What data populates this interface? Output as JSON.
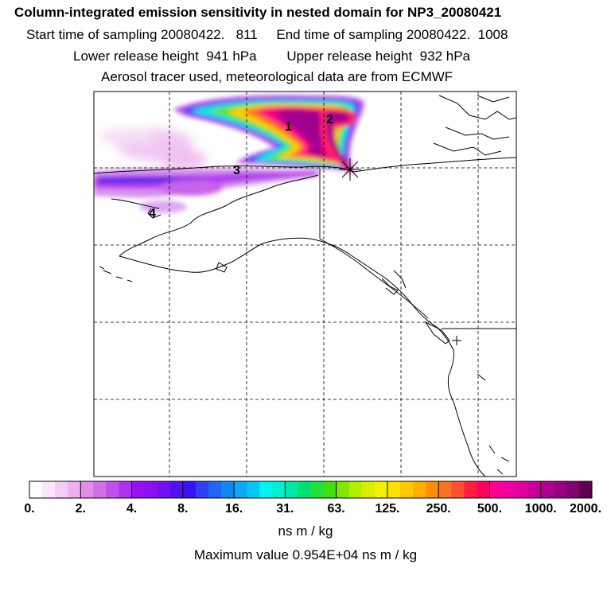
{
  "header": {
    "title": "Column-integrated emission sensitivity in nested domain for NP3_20080421",
    "sampling_line": "Start time of sampling 20080422.   811     End time of sampling 20080422.  1008",
    "release_line": "Lower release height  941 hPa        Upper release height  932 hPa",
    "tracer_line": "Aerosol tracer used, meteorological data are from ECMWF"
  },
  "map": {
    "region": "Alaska, Bering Sea and North American Pacific coast",
    "release_site_marker": "star-icon",
    "cluster_labels": [
      "1",
      "2",
      "3",
      "4"
    ]
  },
  "colorbar": {
    "tick_labels": [
      "0.",
      "2.",
      "4.",
      "8.",
      "16.",
      "31.",
      "63.",
      "125.",
      "250.",
      "500.",
      "1000.",
      "2000."
    ],
    "colors": [
      "#ffffff",
      "#fbe6fb",
      "#f5ccf5",
      "#eeb0ee",
      "#e28ee6",
      "#d070e4",
      "#c050e8",
      "#b030ec",
      "#9c10f0",
      "#8a10f0",
      "#7410f0",
      "#5410f0",
      "#3e10f4",
      "#3040f4",
      "#2066f4",
      "#1088f4",
      "#10a8f4",
      "#00c8f4",
      "#00f4f0",
      "#00f0d0",
      "#00e8a8",
      "#00e070",
      "#20e040",
      "#40e010",
      "#80e800",
      "#b0f000",
      "#d8f000",
      "#f4f000",
      "#ffe000",
      "#ffc800",
      "#ffb000",
      "#ff9000",
      "#ff7020",
      "#ff5030",
      "#ff2040",
      "#ff0060",
      "#ff0090",
      "#f000a0",
      "#e000a0",
      "#c8009a",
      "#b00090",
      "#980080",
      "#800070",
      "#600050"
    ],
    "units": "ns m / kg"
  },
  "footer": {
    "max_value_line": "Maximum value  0.954E+04 ns m / kg"
  }
}
